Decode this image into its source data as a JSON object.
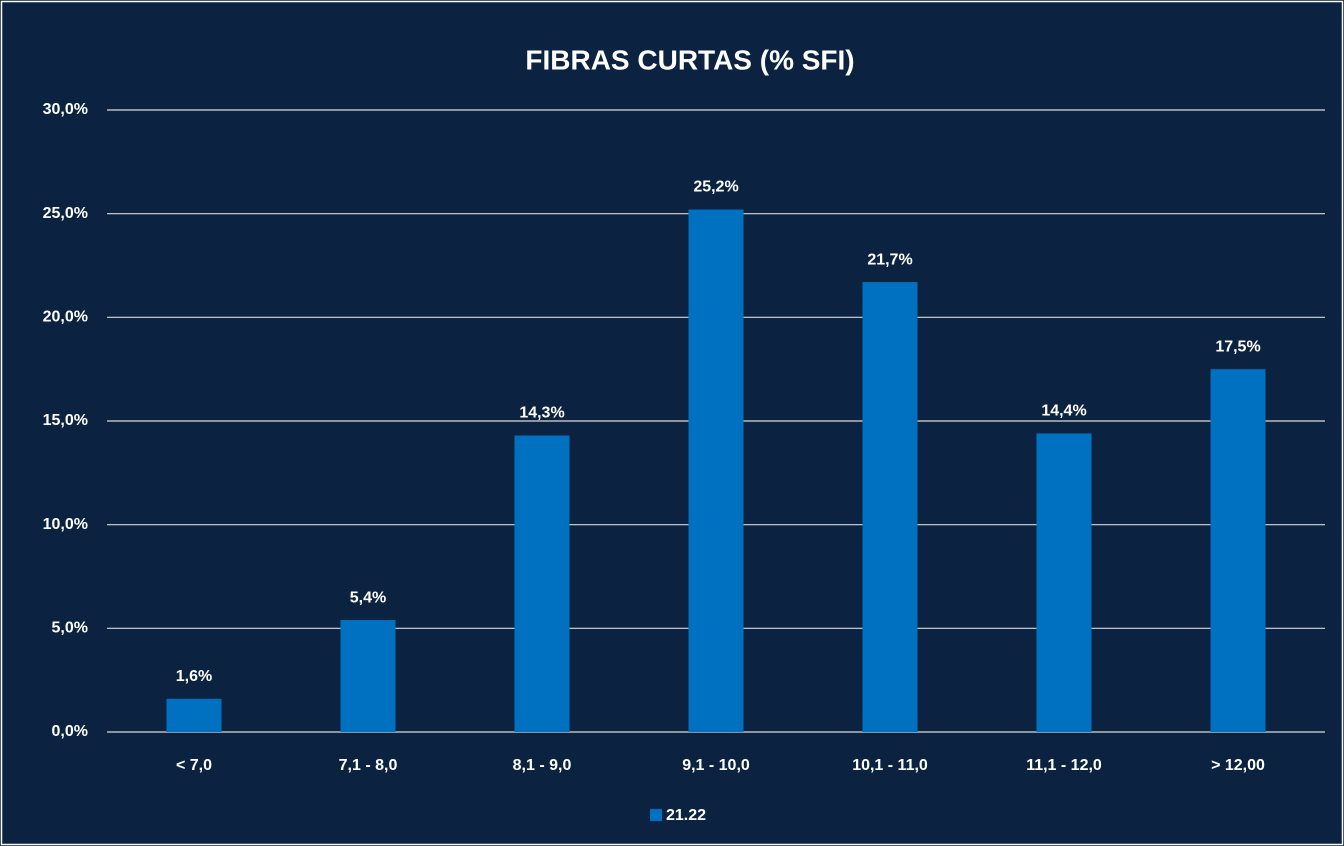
{
  "chart_data": {
    "type": "bar",
    "title": "FIBRAS CURTAS (% SFI)",
    "categories": [
      "< 7,0",
      "7,1 - 8,0",
      "8,1 - 9,0",
      "9,1 - 10,0",
      "10,1 - 11,0",
      "11,1 - 12,0",
      "> 12,00"
    ],
    "series": [
      {
        "name": "21.22",
        "color": "#0070c0",
        "values": [
          1.6,
          5.4,
          14.3,
          25.2,
          21.7,
          14.4,
          17.5
        ],
        "value_labels": [
          "1,6%",
          "5,4%",
          "14,3%",
          "25,2%",
          "21,7%",
          "14,4%",
          "17,5%"
        ]
      }
    ],
    "ylim": [
      0,
      30
    ],
    "yticks": [
      {
        "value": 0,
        "label": "0,0%"
      },
      {
        "value": 5,
        "label": "5,0%"
      },
      {
        "value": 10,
        "label": "10,0%"
      },
      {
        "value": 15,
        "label": "15,0%"
      },
      {
        "value": 20,
        "label": "20,0%"
      },
      {
        "value": 25,
        "label": "25,0%"
      },
      {
        "value": 30,
        "label": "30,0%"
      }
    ],
    "grid": true,
    "legend": "bottom"
  }
}
